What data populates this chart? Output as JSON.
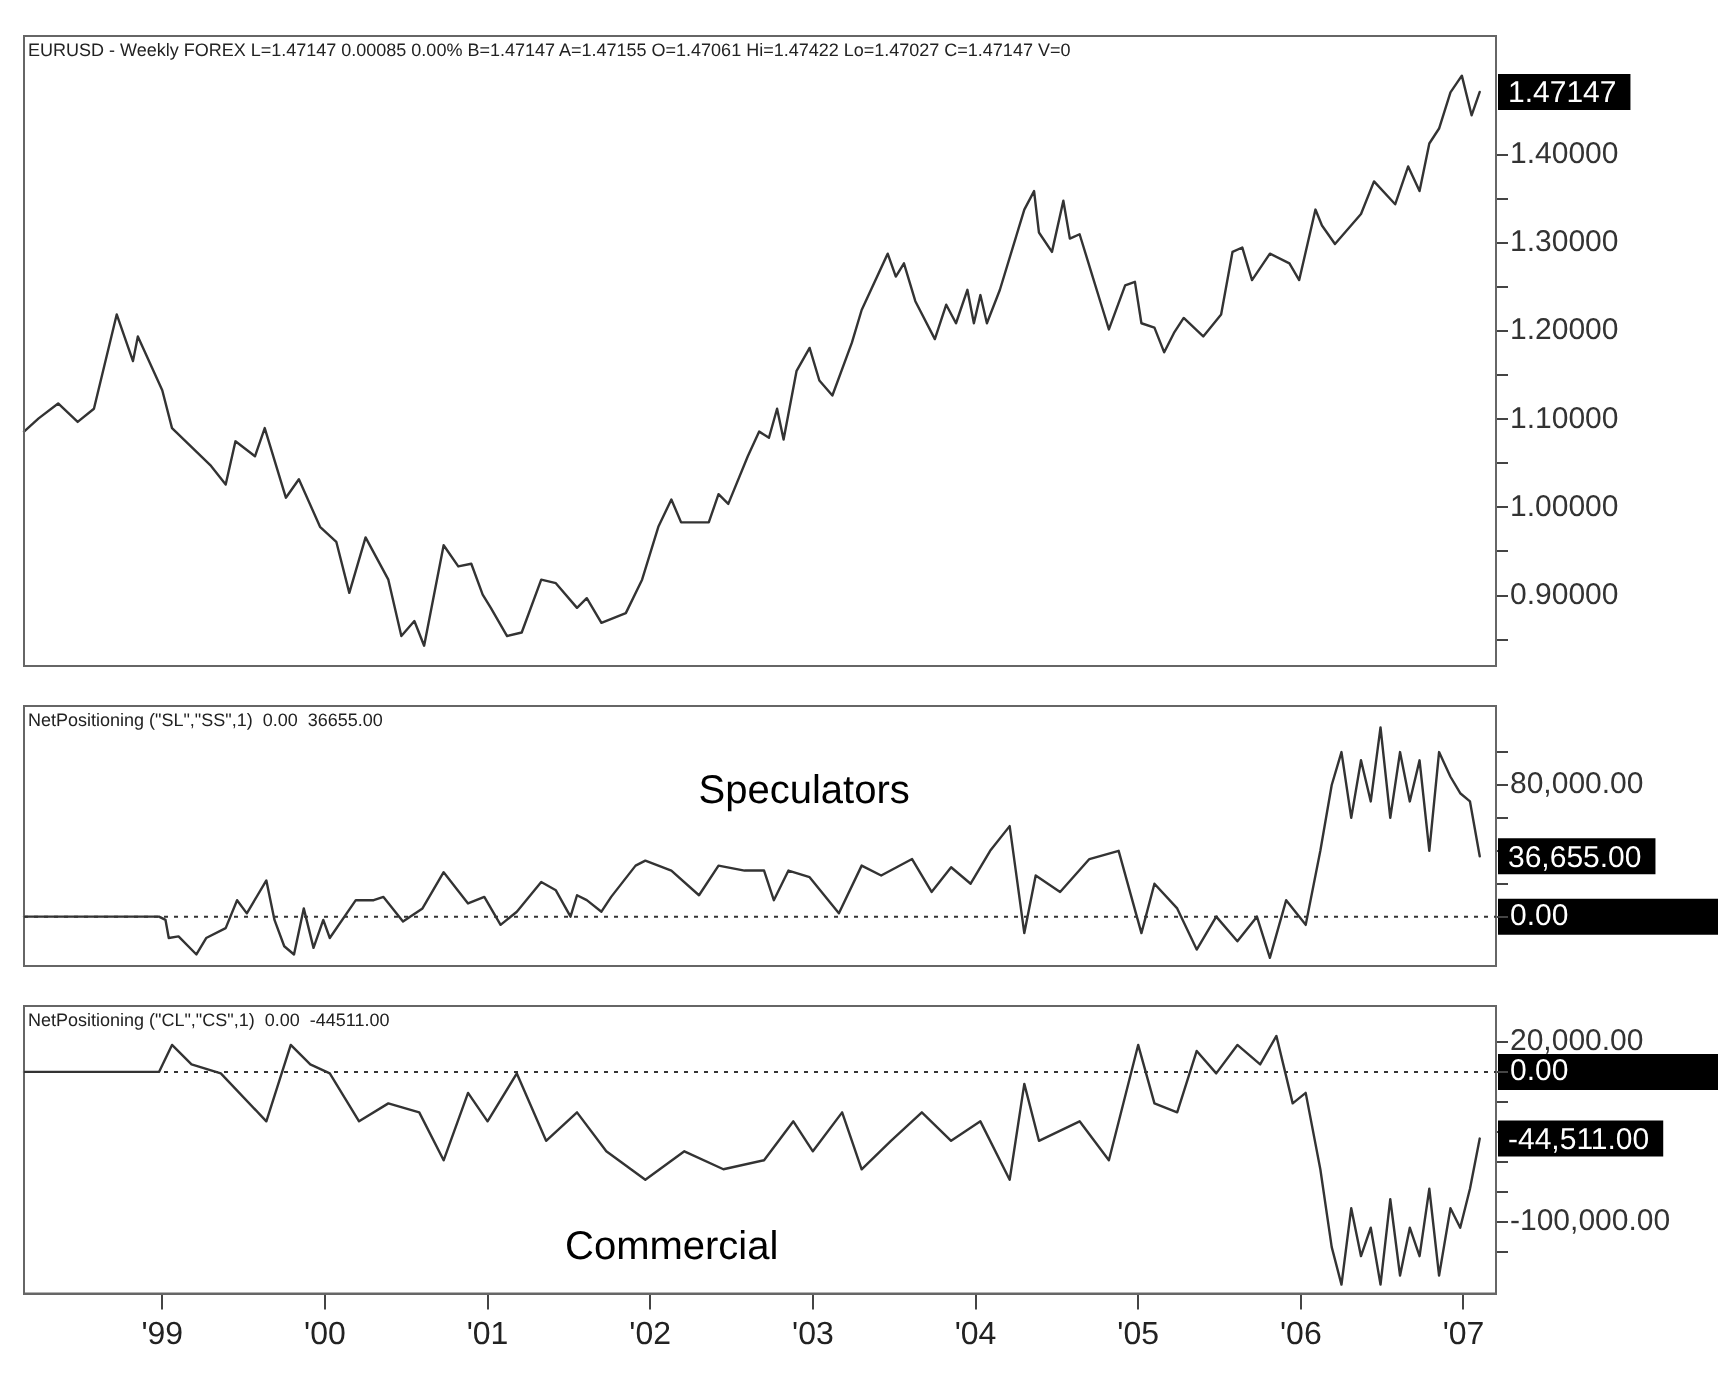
{
  "chart_data": [
    {
      "type": "line",
      "title": "EURUSD - Weekly FOREX L=1.47147 0.00085 0.00% B=1.47147 A=1.47155 O=1.47061 Hi=1.47422 Lo=1.47027 C=1.47147 V=0",
      "xlim": [
        1998.15,
        2007.2
      ],
      "ylim": [
        0.82,
        1.535
      ],
      "yticks": [
        {
          "value": 0.85,
          "label": null
        },
        {
          "value": 0.9,
          "label": "0.90000"
        },
        {
          "value": 0.95,
          "label": null
        },
        {
          "value": 1.0,
          "label": "1.00000"
        },
        {
          "value": 1.05,
          "label": null
        },
        {
          "value": 1.1,
          "label": "1.10000"
        },
        {
          "value": 1.15,
          "label": null
        },
        {
          "value": 1.2,
          "label": "1.20000"
        },
        {
          "value": 1.25,
          "label": null
        },
        {
          "value": 1.3,
          "label": "1.30000"
        },
        {
          "value": 1.35,
          "label": null
        },
        {
          "value": 1.4,
          "label": "1.40000"
        }
      ],
      "tick_labels": "y",
      "grid": false,
      "legend": false,
      "marker": "none",
      "line_style": "solid",
      "annotations": [
        "1.47147"
      ],
      "series": [
        {
          "color": "#333333",
          "x": [
            1998.15,
            1998.24,
            1998.36,
            1998.48,
            1998.58,
            1998.72,
            1998.82,
            1998.85,
            1999.0,
            1999.06,
            1999.3,
            1999.39,
            1999.45,
            1999.57,
            1999.63,
            1999.76,
            1999.84,
            1999.97,
            2000.07,
            2000.15,
            2000.25,
            2000.39,
            2000.47,
            2000.55,
            2000.61,
            2000.73,
            2000.82,
            2000.9,
            2000.97,
            2001.02,
            2001.12,
            2001.21,
            2001.33,
            2001.42,
            2001.55,
            2001.61,
            2001.7,
            2001.85,
            2001.95,
            2002.05,
            2002.13,
            2002.19,
            2002.36,
            2002.42,
            2002.48,
            2002.6,
            2002.67,
            2002.73,
            2002.78,
            2002.82,
            2002.9,
            2002.98,
            2003.04,
            2003.12,
            2003.24,
            2003.3,
            2003.46,
            2003.51,
            2003.56,
            2003.63,
            2003.75,
            2003.82,
            2003.88,
            2003.95,
            2003.99,
            2004.03,
            2004.07,
            2004.15,
            2004.3,
            2004.36,
            2004.39,
            2004.47,
            2004.54,
            2004.58,
            2004.64,
            2004.72,
            2004.78,
            2004.82,
            2004.92,
            2004.98,
            2005.02,
            2005.1,
            2005.16,
            2005.22,
            2005.28,
            2005.4,
            2005.51,
            2005.58,
            2005.64,
            2005.7,
            2005.81,
            2005.93,
            2005.99,
            2006.09,
            2006.13,
            2006.21,
            2006.37,
            2006.45,
            2006.58,
            2006.66,
            2006.73,
            2006.79,
            2006.85,
            2006.92,
            2006.99,
            2007.05,
            2007.1
          ],
          "values": [
            1.086,
            1.101,
            1.118,
            1.097,
            1.112,
            1.219,
            1.166,
            1.194,
            1.133,
            1.09,
            1.047,
            1.026,
            1.075,
            1.058,
            1.09,
            1.011,
            1.032,
            0.978,
            0.961,
            0.903,
            0.966,
            0.918,
            0.854,
            0.871,
            0.843,
            0.957,
            0.933,
            0.936,
            0.901,
            0.886,
            0.854,
            0.858,
            0.918,
            0.914,
            0.886,
            0.897,
            0.869,
            0.88,
            0.918,
            0.978,
            1.009,
            0.983,
            0.983,
            1.015,
            1.004,
            1.058,
            1.086,
            1.079,
            1.112,
            1.077,
            1.155,
            1.181,
            1.144,
            1.127,
            1.187,
            1.224,
            1.288,
            1.262,
            1.277,
            1.234,
            1.191,
            1.23,
            1.209,
            1.247,
            1.209,
            1.241,
            1.209,
            1.247,
            1.338,
            1.359,
            1.312,
            1.29,
            1.348,
            1.305,
            1.31,
            1.262,
            1.226,
            1.202,
            1.252,
            1.256,
            1.209,
            1.204,
            1.176,
            1.198,
            1.215,
            1.194,
            1.219,
            1.29,
            1.295,
            1.258,
            1.288,
            1.277,
            1.258,
            1.338,
            1.32,
            1.299,
            1.333,
            1.37,
            1.344,
            1.387,
            1.359,
            1.413,
            1.43,
            1.471,
            1.49,
            1.445,
            1.47147
          ]
        }
      ]
    },
    {
      "type": "line",
      "title": "NetPositioning (\"SL\",\"SS\",1)  0.00  36655.00",
      "xlim": [
        1998.15,
        2007.2
      ],
      "ylim": [
        -30000,
        128000
      ],
      "yticks": [
        {
          "value": 0,
          "label": "0.00"
        },
        {
          "value": 20000,
          "label": null
        },
        {
          "value": 40000,
          "label": null
        },
        {
          "value": 60000,
          "label": null
        },
        {
          "value": 80000,
          "label": "80,000.00"
        },
        {
          "value": 100000,
          "label": null
        }
      ],
      "tick_labels": "y",
      "grid": false,
      "legend": false,
      "marker": "none",
      "line_style": "solid",
      "ref_lines": [
        {
          "axis": "y",
          "value": 0,
          "line_style": "dotted",
          "color": "#333333"
        }
      ],
      "annotations": [
        "36,655.00"
      ],
      "series": [
        {
          "name": "Speculators",
          "color": "#333333",
          "x": [
            1998.15,
            1998.98,
            1999.02,
            1999.04,
            1999.1,
            1999.21,
            1999.27,
            1999.39,
            1999.46,
            1999.52,
            1999.64,
            1999.69,
            1999.75,
            1999.81,
            1999.87,
            1999.93,
            1999.99,
            2000.03,
            2000.19,
            2000.3,
            2000.36,
            2000.48,
            2000.6,
            2000.73,
            2000.88,
            2000.98,
            2001.08,
            2001.18,
            2001.33,
            2001.42,
            2001.51,
            2001.55,
            2001.61,
            2001.7,
            2001.76,
            2001.91,
            2001.97,
            2002.13,
            2002.3,
            2002.42,
            2002.58,
            2002.7,
            2002.76,
            2002.85,
            2002.98,
            2003.16,
            2003.3,
            2003.42,
            2003.61,
            2003.73,
            2003.85,
            2003.97,
            2004.09,
            2004.21,
            2004.3,
            2004.37,
            2004.52,
            2004.7,
            2004.88,
            2005.02,
            2005.1,
            2005.24,
            2005.36,
            2005.48,
            2005.61,
            2005.73,
            2005.81,
            2005.91,
            2006.03,
            2006.12,
            2006.19,
            2006.25,
            2006.31,
            2006.37,
            2006.43,
            2006.49,
            2006.55,
            2006.61,
            2006.67,
            2006.73,
            2006.79,
            2006.85,
            2006.92,
            2006.98,
            2007.04,
            2007.1
          ],
          "values": [
            0,
            0,
            -2000,
            -13000,
            -12000,
            -23000,
            -13000,
            -7000,
            10000,
            2000,
            22000,
            -2000,
            -18000,
            -23000,
            5000,
            -19000,
            -2000,
            -13000,
            10000,
            10000,
            12000,
            -3000,
            5000,
            27000,
            8000,
            12000,
            -5000,
            3000,
            21000,
            16000,
            0,
            13000,
            10000,
            3000,
            12000,
            31000,
            34000,
            28000,
            13000,
            31000,
            28000,
            28000,
            10000,
            28000,
            24000,
            2000,
            31000,
            25000,
            35000,
            15000,
            30000,
            20000,
            40000,
            55000,
            -10000,
            25000,
            15000,
            35000,
            40000,
            -10000,
            20000,
            5000,
            -20000,
            0,
            -15000,
            0,
            -25000,
            10000,
            -5000,
            40000,
            80000,
            100000,
            60000,
            95000,
            70000,
            115000,
            60000,
            100000,
            70000,
            95000,
            40000,
            100000,
            85000,
            75000,
            70000,
            36655
          ]
        }
      ]
    },
    {
      "type": "line",
      "title": "NetPositioning (\"CL\",\"CS\",1)  0.00  -44511.00",
      "xlim": [
        1998.15,
        2007.2
      ],
      "xticks": [
        {
          "value": 1999,
          "label": "'99"
        },
        {
          "value": 2000,
          "label": "'00"
        },
        {
          "value": 2001,
          "label": "'01"
        },
        {
          "value": 2002,
          "label": "'02"
        },
        {
          "value": 2003,
          "label": "'03"
        },
        {
          "value": 2004,
          "label": "'04"
        },
        {
          "value": 2005,
          "label": "'05"
        },
        {
          "value": 2006,
          "label": "'06"
        },
        {
          "value": 2007,
          "label": "'07"
        }
      ],
      "ylim": [
        -148000,
        44000
      ],
      "yticks": [
        {
          "value": -120000,
          "label": null
        },
        {
          "value": -100000,
          "label": "-100,000.00"
        },
        {
          "value": -80000,
          "label": null
        },
        {
          "value": -60000,
          "label": null
        },
        {
          "value": -40000,
          "label": null
        },
        {
          "value": -20000,
          "label": null
        },
        {
          "value": 0,
          "label": "0.00"
        },
        {
          "value": 20000,
          "label": "20,000.00"
        }
      ],
      "grid": false,
      "legend": false,
      "marker": "none",
      "line_style": "solid",
      "ref_lines": [
        {
          "axis": "y",
          "value": 0,
          "line_style": "dotted",
          "color": "#333333"
        }
      ],
      "annotations": [
        "-44,511.00"
      ],
      "series": [
        {
          "name": "Commercial",
          "color": "#333333",
          "x": [
            1998.15,
            1998.98,
            1999.06,
            1999.18,
            1999.36,
            1999.64,
            1999.79,
            1999.91,
            2000.03,
            2000.21,
            2000.39,
            2000.58,
            2000.73,
            2000.88,
            2001.0,
            2001.18,
            2001.36,
            2001.55,
            2001.73,
            2001.97,
            2002.21,
            2002.45,
            2002.7,
            2002.88,
            2003.0,
            2003.18,
            2003.3,
            2003.48,
            2003.67,
            2003.85,
            2004.03,
            2004.21,
            2004.3,
            2004.39,
            2004.64,
            2004.82,
            2005.0,
            2005.1,
            2005.24,
            2005.36,
            2005.48,
            2005.61,
            2005.75,
            2005.85,
            2005.95,
            2006.03,
            2006.12,
            2006.19,
            2006.25,
            2006.31,
            2006.37,
            2006.43,
            2006.49,
            2006.55,
            2006.61,
            2006.67,
            2006.73,
            2006.79,
            2006.85,
            2006.92,
            2006.98,
            2007.04,
            2007.1
          ],
          "values": [
            0,
            0,
            18000,
            5000,
            -1000,
            -33000,
            18000,
            5000,
            -1000,
            -33000,
            -21000,
            -27000,
            -59000,
            -14000,
            -33000,
            -1000,
            -46000,
            -27000,
            -53000,
            -72000,
            -53000,
            -65000,
            -59000,
            -33000,
            -53000,
            -27000,
            -65000,
            -46000,
            -27000,
            -46000,
            -33000,
            -72000,
            -8000,
            -46000,
            -33000,
            -59000,
            18000,
            -21000,
            -27000,
            14000,
            -1000,
            18000,
            5000,
            24000,
            -21000,
            -14000,
            -65000,
            -117000,
            -142000,
            -91000,
            -123000,
            -104000,
            -142000,
            -85000,
            -136000,
            -104000,
            -123000,
            -78000,
            -136000,
            -91000,
            -104000,
            -78000,
            -44511
          ]
        }
      ]
    }
  ]
}
